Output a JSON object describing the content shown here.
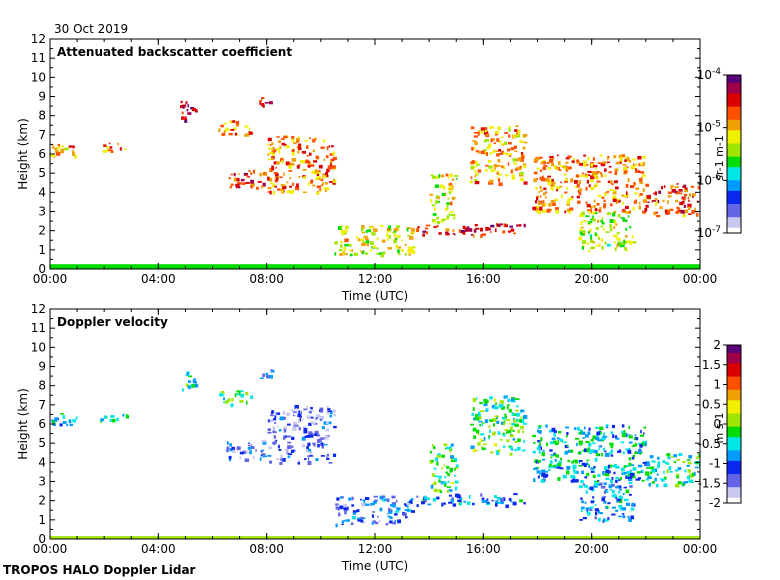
{
  "date_label": "30 Oct 2019",
  "footer": "TROPOS HALO Doppler Lidar",
  "colors": {
    "frame": "#000000",
    "aerosol_blue": "#2a3bd8",
    "aerosol_green": "#2fcf2f",
    "aerosol_orange": "#e2731a",
    "ground_teal": "#1aa090"
  },
  "chart_data": [
    {
      "type": "heatmap",
      "title": "Attenuated backscatter coefficient",
      "xlabel": "Time (UTC)",
      "ylabel": "Height (km)",
      "xlim": [
        0,
        24
      ],
      "ylim": [
        0,
        12
      ],
      "x_ticks": [
        "00:00",
        "04:00",
        "08:00",
        "12:00",
        "16:00",
        "20:00",
        "00:00"
      ],
      "y_ticks": [
        "0",
        "1",
        "2",
        "3",
        "4",
        "5",
        "6",
        "7",
        "8",
        "9",
        "10",
        "11",
        "12"
      ],
      "colorbar": {
        "label": "sr-1 m-1",
        "scale": "log",
        "range": [
          1e-07,
          0.0001
        ],
        "tick_labels": [
          "10-4",
          "10-5",
          "10-6",
          "10-7"
        ],
        "colormap": [
          "#ffffff",
          "#c8c8f0",
          "#6464e6",
          "#0a28f0",
          "#009bff",
          "#00e6e6",
          "#00dc00",
          "#a0e600",
          "#f0f000",
          "#f0a000",
          "#ff5000",
          "#dc0000",
          "#a0004a",
          "#5a0078"
        ]
      },
      "features": [
        {
          "t": [
            0.0,
            1.0
          ],
          "h": [
            5.9,
            6.6
          ],
          "level": 0.7
        },
        {
          "t": [
            1.8,
            3.0
          ],
          "h": [
            6.2,
            6.6
          ],
          "level": 0.72
        },
        {
          "t": [
            4.8,
            5.4
          ],
          "h": [
            7.8,
            8.9
          ],
          "level": 0.85
        },
        {
          "t": [
            6.2,
            7.4
          ],
          "h": [
            7.0,
            7.8
          ],
          "level": 0.72
        },
        {
          "t": [
            7.7,
            8.2
          ],
          "h": [
            8.4,
            9.0
          ],
          "level": 0.9
        },
        {
          "t": [
            6.5,
            7.9
          ],
          "h": [
            4.2,
            5.2
          ],
          "level": 0.8
        },
        {
          "t": [
            8.0,
            10.5
          ],
          "h": [
            4.0,
            7.0
          ],
          "level": 0.72
        },
        {
          "t": [
            10.5,
            13.5
          ],
          "h": [
            0.8,
            2.3
          ],
          "level": 0.6
        },
        {
          "t": [
            13.5,
            17.5
          ],
          "h": [
            1.8,
            2.4
          ],
          "level": 0.85
        },
        {
          "t": [
            14.0,
            15.0
          ],
          "h": [
            2.5,
            5.0
          ],
          "level": 0.6
        },
        {
          "t": [
            15.5,
            17.5
          ],
          "h": [
            4.5,
            7.5
          ],
          "level": 0.68
        },
        {
          "t": [
            17.8,
            22.0
          ],
          "h": [
            3.0,
            6.0
          ],
          "level": 0.72
        },
        {
          "t": [
            19.5,
            21.5
          ],
          "h": [
            1.0,
            3.0
          ],
          "level": 0.55
        },
        {
          "t": [
            22.0,
            24.0
          ],
          "h": [
            2.8,
            4.5
          ],
          "level": 0.78
        }
      ],
      "ground_layer": {
        "t": [
          0.0,
          24.0
        ],
        "h": [
          0.0,
          0.25
        ],
        "level": 0.45
      }
    },
    {
      "type": "heatmap",
      "title": "Doppler velocity",
      "xlabel": "Time (UTC)",
      "ylabel": "Height (km)",
      "xlim": [
        0,
        24
      ],
      "ylim": [
        0,
        12
      ],
      "x_ticks": [
        "00:00",
        "04:00",
        "08:00",
        "12:00",
        "16:00",
        "20:00",
        "00:00"
      ],
      "y_ticks": [
        "0",
        "1",
        "2",
        "3",
        "4",
        "5",
        "6",
        "7",
        "8",
        "9",
        "10",
        "11",
        "12"
      ],
      "colorbar": {
        "label": "m s-1",
        "scale": "linear",
        "range": [
          -2,
          2
        ],
        "tick_labels": [
          "2",
          "1.5",
          "1",
          "0.5",
          "0",
          "-0.5",
          "-1",
          "-1.5",
          "-2"
        ],
        "colormap": [
          "#ffffff",
          "#c8c8f0",
          "#6464e6",
          "#0a28f0",
          "#009bff",
          "#00e6e6",
          "#00dc00",
          "#a0e600",
          "#f0f000",
          "#f0a000",
          "#ff5000",
          "#dc0000",
          "#a0004a",
          "#5a0078"
        ]
      },
      "features": [
        {
          "t": [
            0.0,
            1.0
          ],
          "h": [
            5.9,
            6.6
          ],
          "level": 0.35
        },
        {
          "t": [
            1.8,
            3.0
          ],
          "h": [
            6.2,
            6.6
          ],
          "level": 0.42
        },
        {
          "t": [
            4.8,
            5.4
          ],
          "h": [
            7.8,
            8.9
          ],
          "level": 0.4
        },
        {
          "t": [
            6.2,
            7.4
          ],
          "h": [
            7.0,
            7.8
          ],
          "level": 0.45
        },
        {
          "t": [
            7.7,
            8.2
          ],
          "h": [
            8.4,
            9.0
          ],
          "level": 0.25
        },
        {
          "t": [
            6.5,
            7.9
          ],
          "h": [
            4.2,
            5.2
          ],
          "level": 0.2
        },
        {
          "t": [
            8.0,
            10.5
          ],
          "h": [
            4.0,
            7.0
          ],
          "level": 0.15
        },
        {
          "t": [
            10.5,
            13.5
          ],
          "h": [
            0.8,
            2.3
          ],
          "level": 0.22
        },
        {
          "t": [
            13.5,
            17.5
          ],
          "h": [
            1.8,
            2.4
          ],
          "level": 0.3
        },
        {
          "t": [
            14.0,
            15.0
          ],
          "h": [
            2.5,
            5.0
          ],
          "level": 0.45
        },
        {
          "t": [
            15.5,
            17.5
          ],
          "h": [
            4.5,
            7.5
          ],
          "level": 0.45
        },
        {
          "t": [
            17.8,
            22.0
          ],
          "h": [
            3.0,
            6.0
          ],
          "level": 0.35
        },
        {
          "t": [
            19.5,
            21.5
          ],
          "h": [
            1.0,
            3.0
          ],
          "level": 0.3
        },
        {
          "t": [
            22.0,
            24.0
          ],
          "h": [
            2.8,
            4.5
          ],
          "level": 0.4
        }
      ],
      "ground_layer": {
        "t": [
          0.0,
          24.0
        ],
        "h": [
          0.0,
          0.15
        ],
        "level": 0.5
      }
    }
  ]
}
